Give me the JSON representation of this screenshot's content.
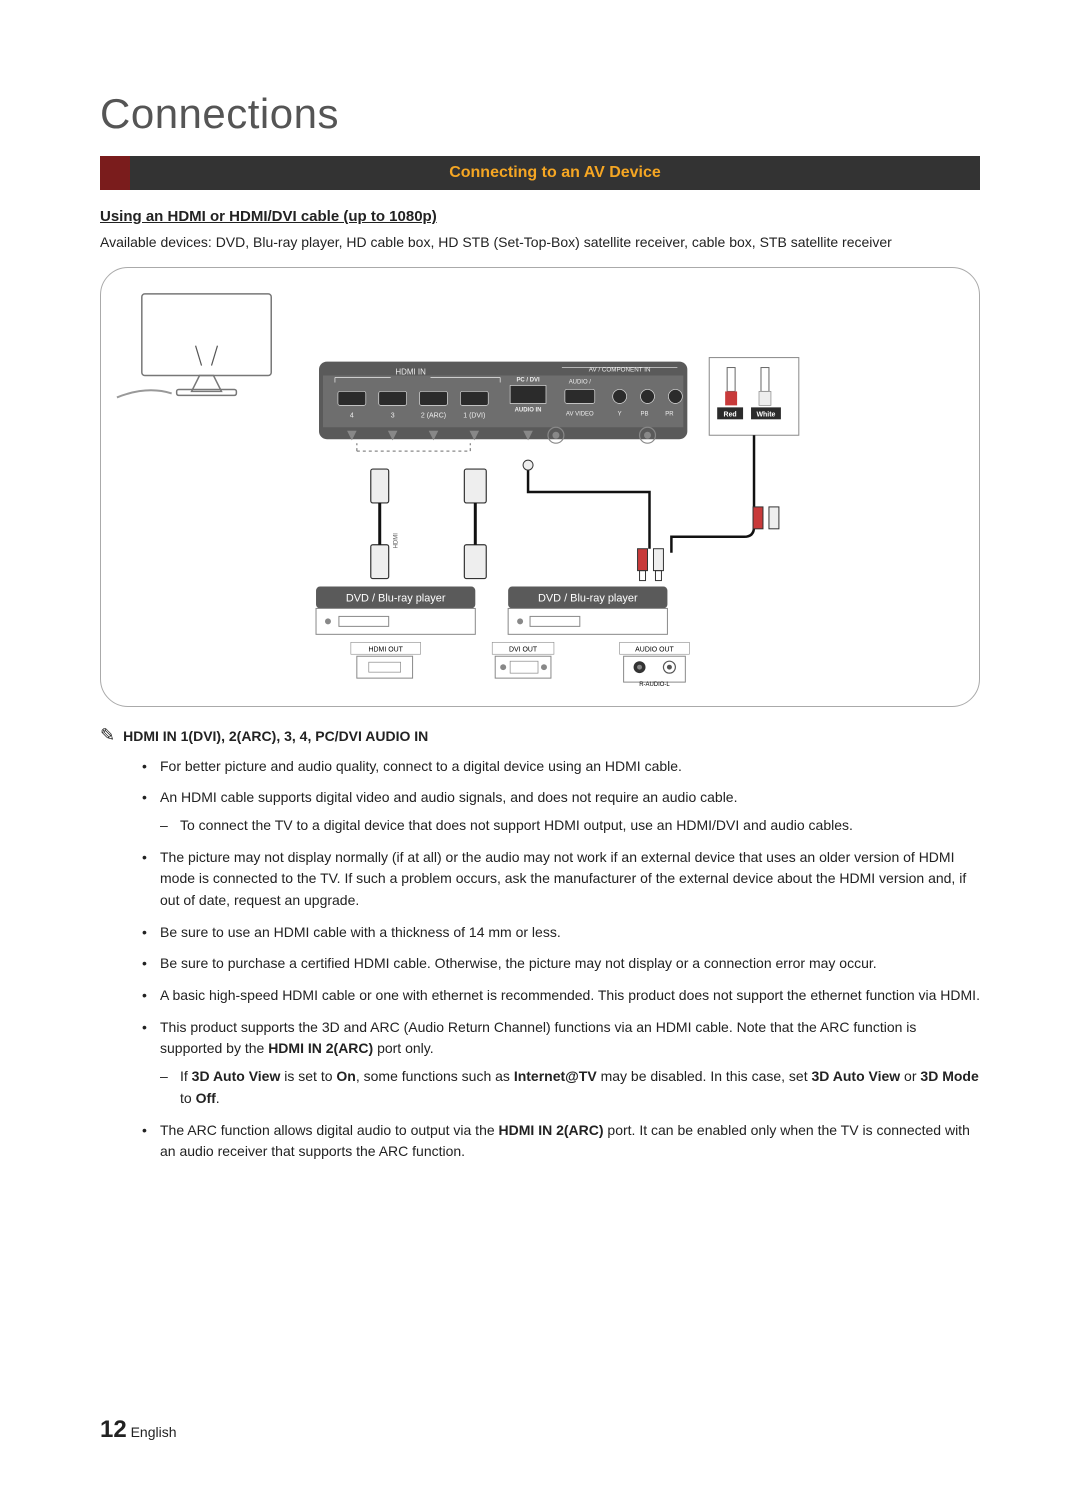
{
  "title": "Connections",
  "header": {
    "text": "Connecting to an AV Device",
    "accent_color": "#7a1c1c",
    "bar_color": "#333333",
    "text_color": "#f5a623"
  },
  "subhead": "Using an HDMI or HDMI/DVI cable (up to 1080p)",
  "available_devices": "Available devices: DVD, Blu-ray player, HD cable box, HD STB (Set-Top-Box) satellite receiver, cable box, STB satellite receiver",
  "diagram": {
    "panel_label_hdmi": "HDMI IN",
    "hdmi_ports": [
      "4",
      "3",
      "2 (ARC)",
      "1 (DVI)"
    ],
    "pc_dvi_label_1": "PC / DVI",
    "pc_dvi_label_2": "AUDIO IN",
    "av_component_label": "AV / COMPONENT IN",
    "av_sub_labels": [
      "AUDIO /",
      "AV VIDEO",
      "Y",
      "PB",
      "PR"
    ],
    "rca_red": "Red",
    "rca_white": "White",
    "player_label_1": "DVD / Blu-ray player",
    "player_label_2": "DVD / Blu-ray player",
    "out_hdmi": "HDMI OUT",
    "out_dvi": "DVI OUT",
    "out_audio": "AUDIO OUT",
    "audio_sub": "R-AUDIO-L",
    "colors": {
      "frame_border": "#aaaaaa",
      "panel_bg": "#5a5a5a",
      "panel_inner": "#8a8a8a",
      "ribbon_bg": "#5a5a5a",
      "cable": "#222222",
      "port_outline": "#d0d0d0",
      "red": "#c83a3a",
      "white": "#e8e8e8"
    }
  },
  "note_title": "HDMI IN 1(DVI), 2(ARC), 3, 4, PC/DVI AUDIO IN",
  "bullets": [
    {
      "text": "For better picture and audio quality, connect to a digital device using an HDMI cable."
    },
    {
      "text": "An HDMI cable supports digital video and audio signals, and does not require an audio cable.",
      "sub": [
        "To connect the TV to a digital device that does not support HDMI output, use an HDMI/DVI and audio cables."
      ]
    },
    {
      "text": "The picture may not display normally (if at all) or the audio may not work if an external device that uses an older version of HDMI mode is connected to the TV. If such a problem occurs, ask the manufacturer of the external device about the HDMI version and, if out of date, request an upgrade."
    },
    {
      "text": "Be sure to use an HDMI cable with a thickness of 14 mm or less."
    },
    {
      "text": "Be sure to purchase a certified HDMI cable. Otherwise, the picture may not display or a connection error may occur."
    },
    {
      "text": "A basic high-speed HDMI cable or one with ethernet is recommended. This product does not support the ethernet function via HDMI."
    },
    {
      "text_html": "This product supports the 3D and ARC (Audio Return Channel) functions via an HDMI cable. Note that the ARC function is supported by the <b>HDMI IN 2(ARC)</b> port only.",
      "sub_html": [
        "If <b>3D Auto View</b> is set to <b>On</b>, some functions such as <b>Internet@TV</b> may be disabled. In this case, set <b>3D Auto View</b> or <b>3D Mode</b> to <b>Off</b>."
      ]
    },
    {
      "text_html": "The ARC function allows digital audio to output via the <b>HDMI IN 2(ARC)</b> port. It can be enabled only when the TV is connected with an audio receiver that supports the ARC function."
    }
  ],
  "footer": {
    "page": "12",
    "lang": "English"
  }
}
